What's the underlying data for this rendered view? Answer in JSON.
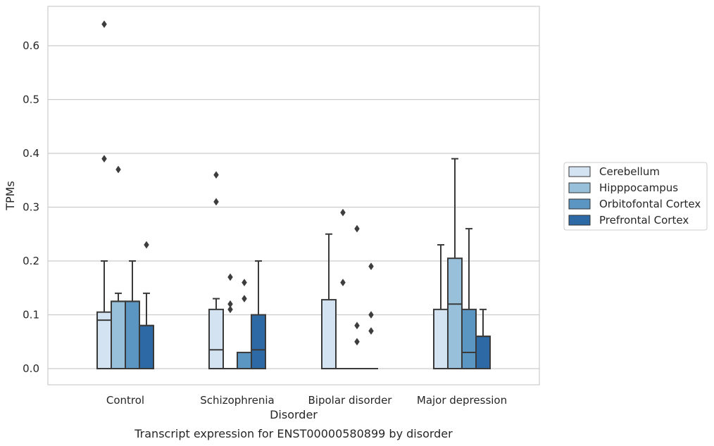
{
  "chart_data": {
    "type": "box",
    "xlabel": "Disorder",
    "ylabel": "TPMs",
    "caption": "Transcript expression for ENST00000580899 by disorder",
    "ylim": [
      -0.03,
      0.67
    ],
    "yticks": [
      "0.0",
      "0.1",
      "0.2",
      "0.3",
      "0.4",
      "0.5",
      "0.6"
    ],
    "grid": "horizontal",
    "legend_position": "right",
    "categories": [
      "Control",
      "Schizophrenia",
      "Bipolar disorder",
      "Major depression"
    ],
    "series": [
      {
        "name": "Cerebellum",
        "color": "#d4e3f1",
        "boxes": [
          {
            "q1": 0,
            "median": 0.09,
            "q3": 0.105,
            "whisker_low": 0,
            "whisker_high": 0.2,
            "outliers": [
              0.64,
              0.39
            ]
          },
          {
            "q1": 0,
            "median": 0.035,
            "q3": 0.11,
            "whisker_low": 0,
            "whisker_high": 0.13,
            "outliers": [
              0.36,
              0.31
            ]
          },
          {
            "q1": 0,
            "median": 0,
            "q3": 0.128,
            "whisker_low": 0,
            "whisker_high": 0.25,
            "outliers": []
          },
          {
            "q1": 0,
            "median": 0,
            "q3": 0.11,
            "whisker_low": 0,
            "whisker_high": 0.23,
            "outliers": []
          }
        ]
      },
      {
        "name": "Hipppocampus",
        "color": "#99c0da",
        "boxes": [
          {
            "q1": 0,
            "median": 0.125,
            "q3": 0.125,
            "whisker_low": 0,
            "whisker_high": 0.14,
            "outliers": [
              0.37
            ]
          },
          {
            "q1": 0,
            "median": 0,
            "q3": 0,
            "whisker_low": 0,
            "whisker_high": 0,
            "outliers": [
              0.17,
              0.12,
              0.11
            ]
          },
          {
            "q1": 0,
            "median": 0,
            "q3": 0,
            "whisker_low": 0,
            "whisker_high": 0,
            "outliers": [
              0.29,
              0.16
            ]
          },
          {
            "q1": 0,
            "median": 0.12,
            "q3": 0.205,
            "whisker_low": 0,
            "whisker_high": 0.39,
            "outliers": []
          }
        ]
      },
      {
        "name": "Orbitofontal Cortex",
        "color": "#5b96c3",
        "boxes": [
          {
            "q1": 0,
            "median": 0.125,
            "q3": 0.125,
            "whisker_low": 0,
            "whisker_high": 0.2,
            "outliers": []
          },
          {
            "q1": 0,
            "median": 0,
            "q3": 0.03,
            "whisker_low": 0,
            "whisker_high": 0.03,
            "outliers": [
              0.16,
              0.13
            ]
          },
          {
            "q1": 0,
            "median": 0,
            "q3": 0,
            "whisker_low": 0,
            "whisker_high": 0,
            "outliers": [
              0.26,
              0.08,
              0.05
            ]
          },
          {
            "q1": 0,
            "median": 0.03,
            "q3": 0.11,
            "whisker_low": 0,
            "whisker_high": 0.26,
            "outliers": []
          }
        ]
      },
      {
        "name": "Prefrontal Cortex",
        "color": "#2d69a5",
        "boxes": [
          {
            "q1": 0,
            "median": 0.08,
            "q3": 0.08,
            "whisker_low": 0,
            "whisker_high": 0.14,
            "outliers": [
              0.23
            ]
          },
          {
            "q1": 0,
            "median": 0.035,
            "q3": 0.1,
            "whisker_low": 0,
            "whisker_high": 0.2,
            "outliers": []
          },
          {
            "q1": 0,
            "median": 0,
            "q3": 0,
            "whisker_low": 0,
            "whisker_high": 0,
            "outliers": [
              0.19,
              0.1,
              0.07
            ]
          },
          {
            "q1": 0,
            "median": 0.06,
            "q3": 0.06,
            "whisker_low": 0,
            "whisker_high": 0.11,
            "outliers": []
          }
        ]
      }
    ]
  }
}
